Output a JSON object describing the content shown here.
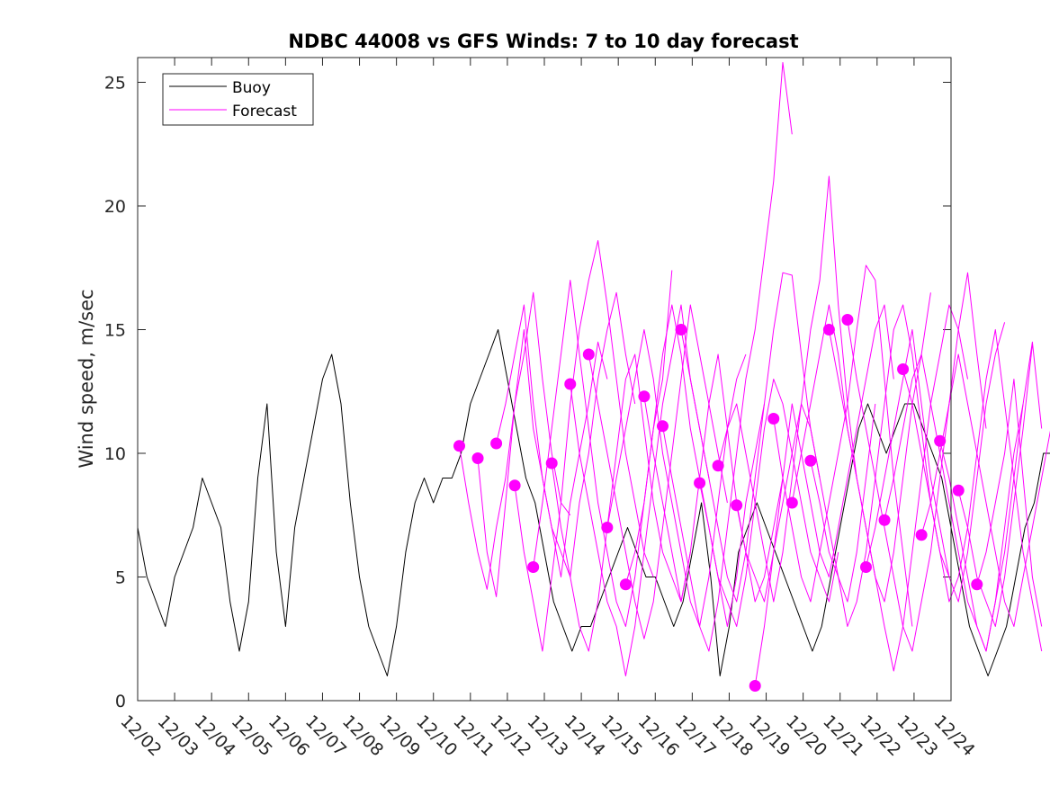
{
  "chart_data": {
    "type": "line",
    "title": "NDBC 44008 vs GFS Winds: 7 to 10 day forecast",
    "xlabel": "",
    "ylabel": "Wind speed, m/sec",
    "x_tick_labels": [
      "12/02",
      "12/03",
      "12/04",
      "12/05",
      "12/06",
      "12/07",
      "12/08",
      "12/09",
      "12/10",
      "12/11",
      "12/12",
      "12/13",
      "12/14",
      "12/15",
      "12/16",
      "12/17",
      "12/18",
      "12/19",
      "12/20",
      "12/21",
      "12/22",
      "12/23",
      "12/24"
    ],
    "xlim_days": [
      0,
      22
    ],
    "ylim": [
      0,
      26
    ],
    "y_ticks": [
      0,
      5,
      10,
      15,
      20,
      25
    ],
    "legend": {
      "position": "top-left",
      "entries": [
        {
          "name": "Buoy",
          "color": "#000000"
        },
        {
          "name": "Forecast",
          "color": "#ff00ff"
        }
      ]
    },
    "colors": {
      "buoy": "#000000",
      "forecast": "#ff00ff"
    },
    "series": [
      {
        "name": "Buoy",
        "x_step_days": 0.25,
        "x_start_day": 0,
        "values": [
          7,
          5,
          4,
          3,
          5,
          6,
          7,
          9,
          8,
          7,
          4,
          2,
          4,
          9,
          12,
          6,
          3,
          7,
          9,
          11,
          13,
          14,
          12,
          8,
          5,
          3,
          2,
          1,
          3,
          6,
          8,
          9,
          8,
          9,
          9,
          10,
          12,
          13,
          14,
          15,
          13,
          11,
          9,
          8,
          6,
          4,
          3,
          2,
          3,
          3,
          4,
          5,
          6,
          7,
          6,
          5,
          5,
          4,
          3,
          4,
          6,
          8,
          5,
          1,
          3,
          6,
          7,
          8,
          7,
          6,
          5,
          4,
          3,
          2,
          3,
          5,
          7,
          9,
          11,
          12,
          11,
          10,
          11,
          12,
          12,
          11,
          10,
          9,
          7,
          5,
          3,
          2,
          1,
          2,
          3,
          5,
          7,
          8,
          10,
          10,
          9,
          8,
          10,
          12,
          14,
          15,
          16,
          15,
          14,
          13,
          12,
          11,
          9,
          7,
          6,
          7,
          9,
          11,
          10,
          9,
          8,
          7,
          6,
          5,
          4,
          5,
          7,
          9,
          11,
          13,
          15,
          14,
          12,
          10,
          8,
          6,
          4,
          3,
          2,
          2,
          4,
          6,
          8,
          10,
          10,
          9,
          8,
          7,
          8,
          9,
          10,
          11,
          10,
          9,
          7,
          5,
          3,
          3,
          4,
          6,
          7,
          8,
          10,
          12,
          14,
          16,
          15,
          13,
          11,
          10,
          9,
          7,
          5,
          3,
          3,
          5,
          7,
          9,
          11,
          12,
          13,
          11,
          10,
          9,
          8,
          7,
          7,
          8
        ]
      },
      {
        "name": "Forecast markers",
        "points": [
          [
            8.7,
            10.3
          ],
          [
            9.2,
            9.8
          ],
          [
            9.7,
            10.4
          ],
          [
            10.2,
            8.7
          ],
          [
            10.7,
            5.4
          ],
          [
            11.2,
            9.6
          ],
          [
            11.7,
            12.8
          ],
          [
            12.2,
            14.0
          ],
          [
            12.7,
            7.0
          ],
          [
            13.2,
            4.7
          ],
          [
            13.7,
            12.3
          ],
          [
            14.2,
            11.1
          ],
          [
            14.7,
            15.0
          ],
          [
            15.2,
            8.8
          ],
          [
            15.7,
            9.5
          ],
          [
            16.2,
            7.9
          ],
          [
            16.7,
            0.6
          ],
          [
            17.2,
            11.4
          ],
          [
            17.7,
            8.0
          ],
          [
            18.2,
            9.7
          ],
          [
            18.7,
            15.0
          ],
          [
            19.2,
            15.4
          ],
          [
            19.7,
            5.4
          ],
          [
            20.2,
            7.3
          ],
          [
            20.7,
            13.4
          ],
          [
            21.2,
            6.7
          ],
          [
            21.7,
            10.5
          ],
          [
            22.2,
            8.5
          ],
          [
            22.7,
            4.7
          ]
        ]
      },
      {
        "name": "Forecast run 1",
        "x_step_days": 0.25,
        "x_start_day": 8.7,
        "values": [
          10.3,
          8,
          6,
          4.5,
          7,
          9,
          12,
          14,
          16.5,
          13,
          10,
          8,
          7.5
        ]
      },
      {
        "name": "Forecast run 2",
        "x_step_days": 0.25,
        "x_start_day": 9.2,
        "values": [
          9.8,
          6,
          4.2,
          8,
          12,
          15,
          11,
          9,
          7,
          5,
          8,
          10,
          12,
          14.5,
          13
        ]
      },
      {
        "name": "Forecast run 3",
        "x_step_days": 0.25,
        "x_start_day": 9.7,
        "values": [
          10.4,
          12,
          14,
          16,
          12,
          9,
          7,
          6,
          5,
          8,
          10,
          13,
          15,
          16.5,
          14,
          12
        ]
      },
      {
        "name": "Forecast run 4",
        "x_step_days": 0.25,
        "x_start_day": 10.2,
        "values": [
          8.7,
          6,
          4,
          2,
          5,
          8,
          12,
          15,
          17,
          18.6,
          16,
          13,
          10,
          8,
          6,
          5
        ]
      },
      {
        "name": "Forecast run 5",
        "x_step_days": 0.25,
        "x_start_day": 10.7,
        "values": [
          5.4,
          8,
          11,
          14,
          17,
          14,
          11,
          8,
          6,
          4,
          3,
          5,
          8,
          11,
          13,
          17.4
        ]
      },
      {
        "name": "Forecast run 6",
        "x_step_days": 0.25,
        "x_start_day": 11.2,
        "values": [
          9.6,
          7,
          5,
          3,
          2,
          4,
          7,
          10,
          13,
          14,
          11,
          8,
          6,
          5,
          4,
          6
        ]
      },
      {
        "name": "Forecast run 7",
        "x_step_days": 0.25,
        "x_start_day": 11.7,
        "values": [
          12.8,
          10,
          8,
          6,
          4,
          3,
          1,
          3,
          6,
          9,
          12,
          14,
          16,
          13,
          11,
          9
        ]
      },
      {
        "name": "Forecast run 8",
        "x_step_days": 0.25,
        "x_start_day": 12.2,
        "values": [
          14,
          12,
          10,
          8,
          6,
          4,
          2.5,
          4,
          7,
          10,
          13,
          16,
          14,
          12,
          10,
          8
        ]
      },
      {
        "name": "Forecast run 9",
        "x_step_days": 0.25,
        "x_start_day": 12.7,
        "values": [
          7,
          9,
          11,
          13,
          15,
          13,
          10,
          8,
          6,
          4,
          3,
          5,
          8,
          11,
          13,
          14
        ]
      },
      {
        "name": "Forecast run 10",
        "x_step_days": 0.25,
        "x_start_day": 13.2,
        "values": [
          4.7,
          6,
          8,
          11,
          14,
          16,
          14,
          11,
          9,
          7,
          5,
          3,
          5,
          8,
          10,
          12
        ]
      },
      {
        "name": "Forecast run 11",
        "x_step_days": 0.25,
        "x_start_day": 13.7,
        "values": [
          12.3,
          10,
          8,
          6,
          4,
          6,
          9,
          12,
          14,
          11,
          8,
          6,
          4,
          5,
          7,
          9
        ]
      },
      {
        "name": "Forecast run 12",
        "x_step_days": 0.25,
        "x_start_day": 14.2,
        "values": [
          11.1,
          9,
          7,
          5,
          3,
          2,
          4,
          7,
          10,
          13,
          15,
          18,
          21,
          25.8,
          22.9
        ]
      },
      {
        "name": "Forecast run 13",
        "x_step_days": 0.25,
        "x_start_day": 14.7,
        "values": [
          15,
          13,
          11,
          9,
          7,
          5,
          4,
          6,
          9,
          12,
          15,
          17.3,
          17.2,
          14,
          11,
          9
        ]
      },
      {
        "name": "Forecast run 14",
        "x_step_days": 0.25,
        "x_start_day": 15.2,
        "values": [
          8.8,
          7,
          5,
          4,
          3,
          5,
          8,
          11,
          13,
          12,
          10,
          8,
          6,
          5,
          4,
          6
        ]
      },
      {
        "name": "Forecast run 15",
        "x_step_days": 0.25,
        "x_start_day": 15.7,
        "values": [
          9.5,
          11,
          12,
          10,
          8,
          6,
          4,
          6,
          9,
          12,
          15,
          17,
          21.2,
          16,
          12,
          9
        ]
      },
      {
        "name": "Forecast run 16",
        "x_step_days": 0.25,
        "x_start_day": 16.2,
        "values": [
          7.9,
          6,
          5,
          4,
          6,
          8,
          10,
          12,
          11,
          9,
          7,
          5,
          4,
          6,
          9,
          12
        ]
      },
      {
        "name": "Forecast run 17",
        "x_step_days": 0.25,
        "x_start_day": 16.7,
        "values": [
          0.6,
          3,
          6,
          9,
          12,
          10,
          8,
          6,
          5,
          7,
          9,
          11,
          13,
          15,
          16,
          13
        ]
      },
      {
        "name": "Forecast run 18",
        "x_step_days": 0.25,
        "x_start_day": 17.2,
        "values": [
          11.4,
          9,
          7,
          5,
          4,
          6,
          8,
          10,
          12,
          15,
          17.6,
          17,
          13,
          9,
          6,
          3
        ]
      },
      {
        "name": "Forecast run 19",
        "x_step_days": 0.25,
        "x_start_day": 17.7,
        "values": [
          8,
          10,
          12,
          14,
          16,
          14,
          11,
          9,
          7,
          5,
          4,
          6,
          9,
          12,
          14,
          16.5
        ]
      },
      {
        "name": "Forecast run 20",
        "x_step_days": 0.25,
        "x_start_day": 18.2,
        "values": [
          9.7,
          8,
          6,
          5,
          3,
          4,
          6,
          9,
          12,
          15,
          16,
          14,
          11,
          8,
          6,
          5
        ]
      },
      {
        "name": "Forecast run 21",
        "x_step_days": 0.25,
        "x_start_day": 18.7,
        "values": [
          15,
          13,
          11,
          9,
          7,
          5,
          3,
          1.2,
          3,
          6,
          9,
          12,
          14,
          16,
          15,
          13
        ]
      },
      {
        "name": "Forecast run 22",
        "x_step_days": 0.25,
        "x_start_day": 19.2,
        "values": [
          15.4,
          13,
          11,
          9,
          7,
          5,
          3,
          2,
          4,
          6,
          9,
          12,
          15,
          17.3,
          14,
          11
        ]
      },
      {
        "name": "Forecast run 23",
        "x_step_days": 0.25,
        "x_start_day": 19.7,
        "values": [
          5.4,
          7,
          9,
          11,
          13,
          15,
          12,
          9,
          7,
          5,
          4,
          6,
          9,
          12,
          14,
          15.3
        ]
      },
      {
        "name": "Forecast run 24",
        "x_step_days": 0.25,
        "x_start_day": 20.2,
        "values": [
          7.3,
          9,
          11,
          13,
          14,
          12,
          10,
          8,
          6,
          4,
          3,
          2,
          4,
          6,
          9,
          12
        ]
      },
      {
        "name": "Forecast run 25",
        "x_step_days": 0.25,
        "x_start_day": 20.7,
        "values": [
          13.4,
          12,
          10,
          8,
          6,
          4,
          5,
          7,
          10,
          13,
          15,
          12,
          9,
          6,
          4,
          2
        ]
      },
      {
        "name": "Forecast run 26",
        "x_step_days": 0.25,
        "x_start_day": 21.2,
        "values": [
          6.7,
          8,
          10,
          12,
          14,
          12,
          10,
          8,
          6,
          4,
          3,
          5,
          7,
          9,
          11
        ]
      },
      {
        "name": "Forecast run 27",
        "x_step_days": 0.25,
        "x_start_day": 21.7,
        "values": [
          10.5,
          9,
          7,
          5,
          3,
          2,
          4,
          7,
          10,
          12,
          14.5,
          11
        ]
      },
      {
        "name": "Forecast run 28",
        "x_step_days": 0.25,
        "x_start_day": 22.2,
        "values": [
          8.5,
          7,
          5,
          4,
          3,
          5,
          8,
          11,
          14.4
        ]
      },
      {
        "name": "Forecast run 29",
        "x_step_days": 0.25,
        "x_start_day": 22.7,
        "values": [
          4.7,
          6,
          8,
          10,
          13,
          9,
          5,
          3
        ]
      }
    ]
  }
}
